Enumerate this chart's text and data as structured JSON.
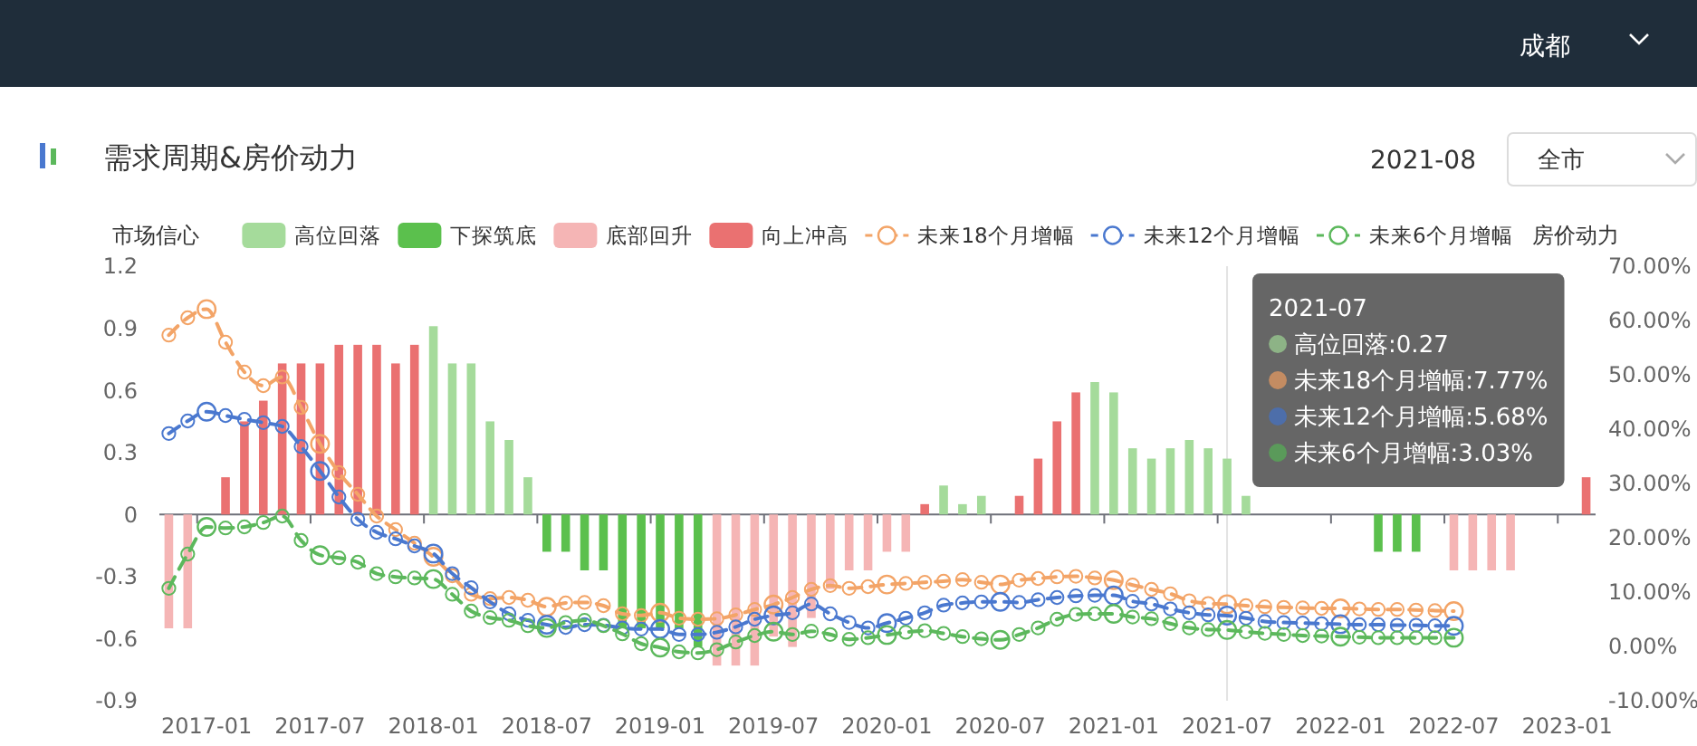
{
  "chart_data": {
    "type": "bar",
    "title": "需求周期&房价动力",
    "ylabel": "市场信心",
    "y2label": "房价动力",
    "categories": [
      null,
      null,
      "2017-01",
      null,
      null,
      null,
      null,
      null,
      "2017-07",
      null,
      null,
      null,
      null,
      null,
      "2018-01",
      null,
      null,
      null,
      null,
      null,
      "2018-07",
      null,
      null,
      null,
      null,
      null,
      "2019-01",
      null,
      null,
      null,
      null,
      null,
      "2019-07",
      null,
      null,
      null,
      null,
      null,
      "2020-01",
      null,
      null,
      null,
      null,
      null,
      "2020-07",
      null,
      null,
      null,
      null,
      null,
      "2021-01",
      null,
      null,
      null,
      null,
      null,
      "2021-07",
      null,
      null,
      null,
      null,
      null,
      "2022-01",
      null,
      null,
      null,
      null,
      null,
      "2022-07",
      null,
      null,
      null,
      null,
      null,
      "2023-01",
      null
    ],
    "stacked": true,
    "series": [
      {
        "name": "高位回落",
        "color": "#a5db9b",
        "values": [
          null,
          null,
          null,
          null,
          null,
          null,
          null,
          null,
          null,
          null,
          null,
          null,
          null,
          null,
          0.91,
          0.73,
          0.73,
          0.45,
          0.36,
          0.18,
          null,
          null,
          null,
          null,
          null,
          null,
          null,
          null,
          null,
          null,
          null,
          null,
          null,
          null,
          null,
          null,
          null,
          null,
          null,
          null,
          null,
          0.14,
          0.05,
          0.09,
          null,
          null,
          null,
          null,
          null,
          0.64,
          0.59,
          0.32,
          0.27,
          0.32,
          0.36,
          0.32,
          0.27,
          0.09,
          null,
          null,
          null,
          null,
          null,
          null,
          null,
          null,
          null,
          null,
          null,
          null,
          null,
          null,
          null,
          null,
          null,
          null
        ]
      },
      {
        "name": "下探筑底",
        "color": "#5bc04d",
        "values": [
          null,
          null,
          null,
          null,
          null,
          null,
          null,
          null,
          null,
          null,
          null,
          null,
          null,
          null,
          null,
          null,
          null,
          null,
          null,
          null,
          -0.18,
          -0.18,
          -0.27,
          -0.27,
          -0.55,
          -0.55,
          -0.55,
          -0.55,
          -0.64,
          null,
          null,
          null,
          null,
          null,
          null,
          null,
          null,
          null,
          null,
          null,
          null,
          null,
          null,
          null,
          null,
          null,
          null,
          null,
          null,
          null,
          null,
          null,
          null,
          null,
          null,
          null,
          null,
          null,
          null,
          null,
          null,
          null,
          null,
          null,
          -0.18,
          -0.18,
          -0.18,
          null,
          null,
          null,
          null,
          null,
          null,
          null,
          null,
          null
        ]
      },
      {
        "name": "底部回升",
        "color": "#f5b5b5",
        "values": [
          -0.55,
          -0.55,
          null,
          null,
          null,
          null,
          null,
          null,
          null,
          null,
          null,
          null,
          null,
          null,
          null,
          null,
          null,
          null,
          null,
          null,
          null,
          null,
          null,
          null,
          null,
          null,
          null,
          null,
          null,
          -0.73,
          -0.73,
          -0.73,
          -0.59,
          -0.64,
          -0.5,
          -0.36,
          -0.27,
          -0.27,
          -0.18,
          -0.18,
          null,
          null,
          null,
          null,
          null,
          null,
          null,
          null,
          null,
          null,
          null,
          null,
          null,
          null,
          null,
          null,
          null,
          null,
          null,
          null,
          null,
          null,
          null,
          null,
          null,
          null,
          null,
          null,
          -0.27,
          -0.27,
          -0.27,
          -0.27,
          null,
          null,
          null,
          null
        ]
      },
      {
        "name": "向上冲高",
        "color": "#ea7171",
        "values": [
          null,
          null,
          null,
          0.18,
          0.45,
          0.55,
          0.73,
          0.73,
          0.73,
          0.82,
          0.82,
          0.82,
          0.73,
          0.82,
          null,
          null,
          null,
          null,
          null,
          null,
          null,
          null,
          null,
          null,
          null,
          null,
          null,
          null,
          null,
          null,
          null,
          null,
          null,
          null,
          null,
          null,
          null,
          null,
          null,
          null,
          0.05,
          null,
          null,
          null,
          null,
          0.09,
          0.27,
          0.45,
          0.59,
          null,
          null,
          null,
          null,
          null,
          null,
          null,
          null,
          null,
          null,
          null,
          null,
          null,
          null,
          null,
          null,
          null,
          null,
          null,
          null,
          null,
          null,
          null,
          null,
          null,
          null,
          0.18
        ]
      },
      {
        "name": "未来18个月增幅",
        "type": "line",
        "axis": "y2",
        "color": "#f3a467",
        "values": [
          57.3,
          60.5,
          62.1,
          56,
          50.5,
          48,
          49.6,
          44,
          37.3,
          32,
          28,
          24,
          21.5,
          19,
          16.5,
          13,
          9.6,
          8.8,
          9,
          8.5,
          7.3,
          8,
          8.1,
          7.5,
          6,
          5.7,
          6.2,
          5.2,
          5,
          5.1,
          5.8,
          6.8,
          7.7,
          9,
          10.5,
          11.2,
          10.7,
          11,
          11.4,
          11.6,
          11.8,
          12,
          12.3,
          11.8,
          11.4,
          12.2,
          12.5,
          12.8,
          12.9,
          12.6,
          12.2,
          11.3,
          10.5,
          9.7,
          8.4,
          7.9,
          7.77,
          7.5,
          7.3,
          7.2,
          7.1,
          7,
          7,
          6.9,
          6.8,
          6.8,
          6.7,
          6.6,
          6.5,
          null,
          null,
          null,
          null,
          null,
          null,
          null
        ]
      },
      {
        "name": "未来12个月增幅",
        "type": "line",
        "axis": "y2",
        "color": "#4a78cf",
        "values": [
          39.2,
          41.5,
          43.2,
          42.5,
          41.8,
          41.2,
          40.5,
          36.8,
          32.3,
          27.5,
          23.4,
          21,
          19.8,
          18.5,
          17.1,
          13.4,
          10.8,
          8.2,
          6,
          4.8,
          4,
          3.5,
          4,
          3.9,
          3.4,
          3.2,
          3.2,
          2.2,
          2.2,
          2.6,
          3.6,
          5,
          5.7,
          6.2,
          7.8,
          6,
          4.4,
          3.4,
          4.3,
          5.2,
          6.2,
          7.6,
          8,
          8.2,
          8.2,
          8.1,
          8.6,
          9,
          9.3,
          9.4,
          9.4,
          8.3,
          7.8,
          6.9,
          6.2,
          5.8,
          5.68,
          5.2,
          4.6,
          4.4,
          4.3,
          4.2,
          4.1,
          4,
          4,
          3.9,
          3.9,
          3.8,
          3.8,
          null,
          null,
          null,
          null,
          null,
          null,
          null
        ]
      },
      {
        "name": "未来6个月增幅",
        "type": "line",
        "axis": "y2",
        "color": "#5cb85c",
        "values": [
          10.7,
          17,
          22,
          21.8,
          22,
          22.8,
          24,
          19.5,
          16.8,
          16.3,
          15.5,
          13.4,
          12.8,
          12.6,
          12.4,
          9.6,
          6.5,
          5.3,
          4.8,
          3.8,
          3.4,
          4.4,
          4.8,
          3.8,
          2.3,
          0.5,
          -0.2,
          -1,
          -1.2,
          -0.6,
          0.8,
          2,
          2.7,
          2.2,
          2.8,
          2.2,
          1.3,
          1.6,
          2.1,
          2.6,
          2.9,
          2.4,
          1.8,
          1.4,
          1.2,
          2.2,
          3.4,
          5,
          5.9,
          6,
          6,
          5.4,
          5.1,
          4.2,
          3.4,
          3.1,
          3.03,
          2.7,
          2.4,
          2.2,
          2,
          1.9,
          1.8,
          1.7,
          1.6,
          1.6,
          1.6,
          1.6,
          1.6,
          null,
          null,
          null,
          null,
          null,
          null,
          null
        ]
      }
    ],
    "ylim": [
      -0.9,
      1.2
    ],
    "yticks": [
      -0.9,
      -0.6,
      -0.3,
      0,
      0.3,
      0.6,
      0.9,
      1.2
    ],
    "y2lim": [
      -10,
      70
    ],
    "y2ticks": [
      {
        "value": -10,
        "label": "-10.00%"
      },
      {
        "value": 0,
        "label": "0.00%"
      },
      {
        "value": 10,
        "label": "10.00%"
      },
      {
        "value": 20,
        "label": "20.00%"
      },
      {
        "value": 30,
        "label": "30.00%"
      },
      {
        "value": 40,
        "label": "40.00%"
      },
      {
        "value": 50,
        "label": "50.00%"
      },
      {
        "value": 60,
        "label": "60.00%"
      },
      {
        "value": 70,
        "label": "70.00%"
      }
    ],
    "legend": "top",
    "marker": "circle",
    "line_style": "dashed",
    "ref_lines": [
      {
        "axis": "x",
        "value": "2021-07",
        "color": "#e3e3e3"
      }
    ],
    "annotations": [
      "成都",
      "2021-08",
      "全市",
      {
        "text": "2021-07",
        "x": "2021-07"
      },
      {
        "text": "高位回落:0.27",
        "x": "2021-07"
      },
      {
        "text": "未来18个月增幅:7.77%",
        "x": "2021-07"
      },
      {
        "text": "未来12个月增幅:5.68%",
        "x": "2021-07"
      },
      {
        "text": "未来6个月增幅:3.03%",
        "x": "2021-07"
      }
    ]
  }
}
